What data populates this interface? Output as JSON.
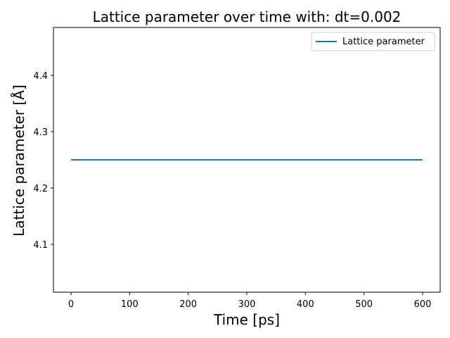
{
  "chart_data": {
    "type": "line",
    "title": "Lattice parameter over time with: dt=0.002",
    "xlabel": "Time [ps]",
    "ylabel": "Lattice parameter [Å]",
    "xlim": [
      -30,
      630
    ],
    "ylim": [
      4.015,
      4.485
    ],
    "xticks": [
      0,
      100,
      200,
      300,
      400,
      500,
      600
    ],
    "yticks": [
      4.1,
      4.2,
      4.3,
      4.4
    ],
    "grid": false,
    "legend_position": "top-right",
    "series": [
      {
        "name": "Lattice parameter",
        "color": "#1f77b4",
        "x": [
          0,
          100,
          200,
          300,
          400,
          500,
          600
        ],
        "y": [
          4.25,
          4.25,
          4.25,
          4.25,
          4.25,
          4.25,
          4.25
        ]
      }
    ]
  }
}
